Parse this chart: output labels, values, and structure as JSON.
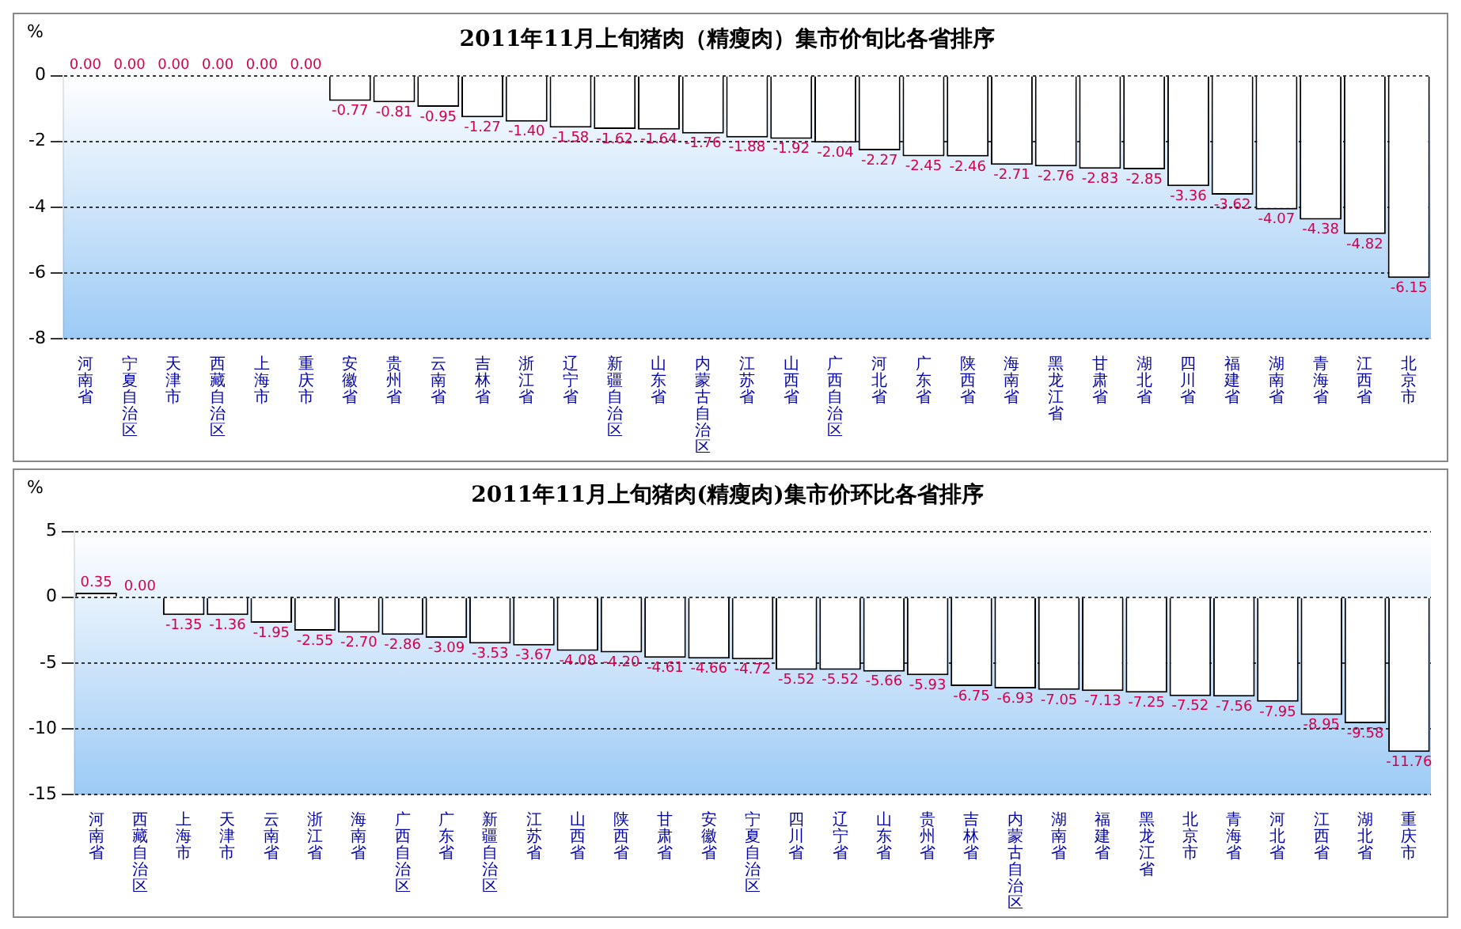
{
  "chart_data": [
    {
      "type": "bar",
      "title": "2011年11月上旬猪肉（精瘦肉）集市价旬比各省排序",
      "ylabel": "%",
      "categories": [
        "河南省",
        "宁夏自治区",
        "天津市",
        "西藏自治区",
        "上海市",
        "重庆市",
        "安徽省",
        "贵州省",
        "云南省",
        "吉林省",
        "浙江省",
        "辽宁省",
        "新疆自治区",
        "山东省",
        "内蒙古自治区",
        "江苏省",
        "山西省",
        "广西自治区",
        "河北省",
        "广东省",
        "陕西省",
        "海南省",
        "黑龙江省",
        "甘肃省",
        "湖北省",
        "四川省",
        "福建省",
        "湖南省",
        "青海省",
        "江西省",
        "北京市"
      ],
      "values": [
        0,
        0,
        0,
        0,
        0,
        0,
        -0.77,
        -0.81,
        -0.95,
        -1.27,
        -1.4,
        -1.58,
        -1.62,
        -1.64,
        -1.76,
        -1.88,
        -1.92,
        -2.04,
        -2.27,
        -2.45,
        -2.46,
        -2.71,
        -2.76,
        -2.83,
        -2.85,
        -3.36,
        -3.62,
        -4.07,
        -4.38,
        -4.82,
        -6.15
      ],
      "value_labels": [
        "0.00",
        "0.00",
        "0.00",
        "0.00",
        "0.00",
        "0.00",
        "-0.77",
        "-0.81",
        "-0.95",
        "-1.27",
        "-1.40",
        "-1.58",
        "-1.62",
        "-1.64",
        "-1.76",
        "-1.88",
        "-1.92",
        "-2.04",
        "-2.27",
        "-2.45",
        "-2.46",
        "-2.71",
        "-2.76",
        "-2.83",
        "-2.85",
        "-3.36",
        "-3.62",
        "-4.07",
        "-4.38",
        "-4.82",
        "-6.15"
      ],
      "color": "#ffffff",
      "ylim": [
        -8,
        0
      ],
      "yticks": [
        0,
        -2,
        -4,
        -6,
        -8
      ],
      "grid": "y"
    },
    {
      "type": "bar",
      "title": "2011年11月上旬猪肉(精瘦肉)集市价环比各省排序",
      "ylabel": "%",
      "categories": [
        "河南省",
        "西藏自治区",
        "上海市",
        "天津市",
        "云南省",
        "浙江省",
        "海南省",
        "广西自治区",
        "广东省",
        "新疆自治区",
        "江苏省",
        "山西省",
        "陕西省",
        "甘肃省",
        "安徽省",
        "宁夏自治区",
        "四川省",
        "辽宁省",
        "山东省",
        "贵州省",
        "吉林省",
        "内蒙古自治区",
        "湖南省",
        "福建省",
        "黑龙江省",
        "北京市",
        "青海省",
        "河北省",
        "江西省",
        "湖北省",
        "重庆市"
      ],
      "values": [
        0.35,
        0,
        -1.35,
        -1.36,
        -1.95,
        -2.55,
        -2.7,
        -2.86,
        -3.09,
        -3.53,
        -3.67,
        -4.08,
        -4.2,
        -4.61,
        -4.66,
        -4.72,
        -5.52,
        -5.52,
        -5.66,
        -5.93,
        -6.75,
        -6.93,
        -7.05,
        -7.13,
        -7.25,
        -7.52,
        -7.56,
        -7.95,
        -8.95,
        -9.58,
        -11.76
      ],
      "value_labels": [
        "0.35",
        "0.00",
        "-1.35",
        "-1.36",
        "-1.95",
        "-2.55",
        "-2.70",
        "-2.86",
        "-3.09",
        "-3.53",
        "-3.67",
        "-4.08",
        "-4.20",
        "-4.61",
        "-4.66",
        "-4.72",
        "-5.52",
        "-5.52",
        "-5.66",
        "-5.93",
        "-6.75",
        "-6.93",
        "-7.05",
        "-7.13",
        "-7.25",
        "-7.52",
        "-7.56",
        "-7.95",
        "-8.95",
        "-9.58",
        "-11.76"
      ],
      "color": "#ffffff",
      "ylim": [
        -15,
        5
      ],
      "yticks": [
        5,
        0,
        -5,
        -10,
        -15
      ],
      "grid": "y"
    }
  ]
}
